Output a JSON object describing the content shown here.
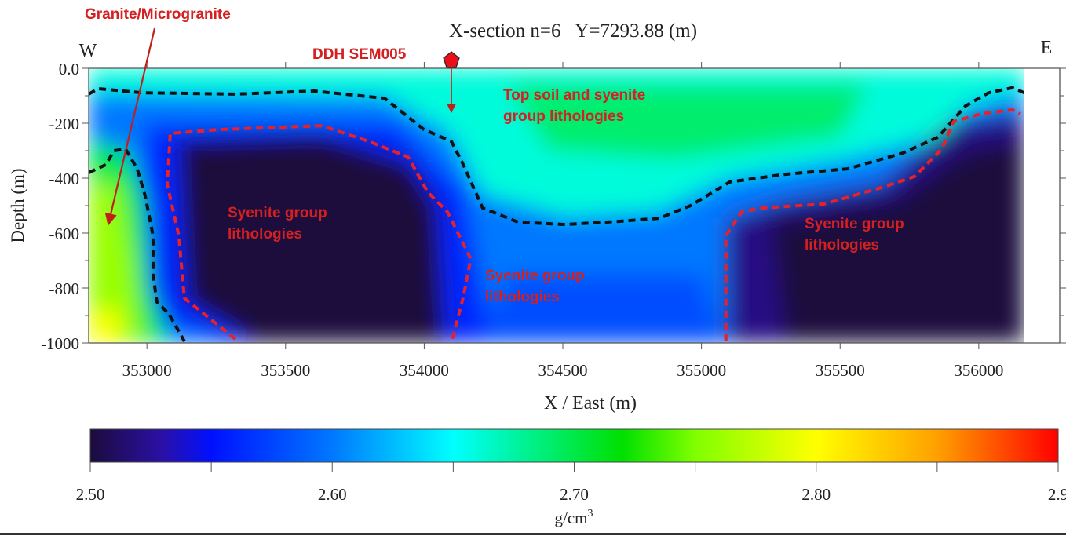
{
  "chart_data": {
    "type": "heatmap",
    "title": "X-section n=6   Y=7293.88 (m)",
    "xlabel": "X / East (m)",
    "ylabel": "Depth (m)",
    "xlim": [
      352790,
      356292
    ],
    "data_xlim": [
      352790,
      356165
    ],
    "ylim": [
      -1000,
      0
    ],
    "x_ticks": [
      353000,
      353500,
      354000,
      354500,
      355000,
      355500,
      356000
    ],
    "x_tick_labels": [
      "353000",
      "353500",
      "354000",
      "354500",
      "355000",
      "355500",
      "356000"
    ],
    "y_ticks": [
      0,
      -200,
      -400,
      -600,
      -800,
      -1000
    ],
    "y_tick_labels": [
      "0.0",
      "-200",
      "-400",
      "-600",
      "-800",
      "-1000"
    ],
    "west_label": "W",
    "east_label": "E",
    "colorbar": {
      "label_base": "g/cm",
      "label_sup": "3",
      "range": [
        2.5,
        2.9
      ],
      "ticks": [
        2.5,
        2.55,
        2.6,
        2.65,
        2.7,
        2.75,
        2.8,
        2.85,
        2.9
      ],
      "tick_labels": [
        "2.50",
        "2.60",
        "2.70",
        "2.80",
        "2.9"
      ],
      "tick_label_values": [
        2.5,
        2.6,
        2.7,
        2.8,
        2.9
      ],
      "stops": [
        {
          "v": 2.5,
          "c": "#1c0c3c"
        },
        {
          "v": 2.53,
          "c": "#2a10a8"
        },
        {
          "v": 2.55,
          "c": "#0010ff"
        },
        {
          "v": 2.6,
          "c": "#0078ff"
        },
        {
          "v": 2.65,
          "c": "#00ffff"
        },
        {
          "v": 2.72,
          "c": "#00e000"
        },
        {
          "v": 2.75,
          "c": "#80ff00"
        },
        {
          "v": 2.8,
          "c": "#ffff00"
        },
        {
          "v": 2.85,
          "c": "#ffa000"
        },
        {
          "v": 2.9,
          "c": "#ff0000"
        }
      ]
    },
    "density_regions": [
      {
        "density": 2.6,
        "points": [
          [
            352790,
            0
          ],
          [
            356165,
            0
          ],
          [
            356165,
            -1000
          ],
          [
            352790,
            -1000
          ]
        ]
      },
      {
        "density": 2.66,
        "points": [
          [
            352790,
            0
          ],
          [
            356165,
            0
          ],
          [
            356165,
            -80
          ],
          [
            355952,
            -140
          ],
          [
            355853,
            -250
          ],
          [
            355527,
            -330
          ],
          [
            355102,
            -400
          ],
          [
            354848,
            -520
          ],
          [
            354508,
            -540
          ],
          [
            354211,
            -460
          ],
          [
            354098,
            -240
          ],
          [
            353857,
            -100
          ],
          [
            352790,
            -90
          ]
        ]
      },
      {
        "density": 2.69,
        "points": [
          [
            354300,
            -60
          ],
          [
            355600,
            -60
          ],
          [
            355500,
            -250
          ],
          [
            354900,
            -330
          ],
          [
            354450,
            -300
          ]
        ]
      },
      {
        "density": 2.56,
        "points": [
          [
            352990,
            -200
          ],
          [
            353900,
            -200
          ],
          [
            354150,
            -450
          ],
          [
            354250,
            -1000
          ],
          [
            353300,
            -1000
          ],
          [
            352990,
            -900
          ]
        ]
      },
      {
        "density": 2.5,
        "points": [
          [
            353110,
            -260
          ],
          [
            353630,
            -240
          ],
          [
            353950,
            -340
          ],
          [
            354050,
            -500
          ],
          [
            354080,
            -1000
          ],
          [
            353380,
            -1000
          ],
          [
            353140,
            -850
          ]
        ]
      },
      {
        "density": 2.58,
        "points": [
          [
            354300,
            -750
          ],
          [
            355000,
            -750
          ],
          [
            355080,
            -1000
          ],
          [
            354200,
            -1000
          ]
        ]
      },
      {
        "density": 2.52,
        "points": [
          [
            355090,
            -550
          ],
          [
            355300,
            -480
          ],
          [
            355650,
            -420
          ],
          [
            355900,
            -200
          ],
          [
            356165,
            -160
          ],
          [
            356165,
            -1000
          ],
          [
            355090,
            -1000
          ]
        ]
      },
      {
        "density": 2.5,
        "points": [
          [
            355250,
            -560
          ],
          [
            355700,
            -480
          ],
          [
            355950,
            -300
          ],
          [
            356165,
            -260
          ],
          [
            356165,
            -1000
          ],
          [
            355300,
            -1000
          ]
        ]
      },
      {
        "density": 2.7,
        "points": [
          [
            352790,
            -260
          ],
          [
            352930,
            -300
          ],
          [
            352990,
            -480
          ],
          [
            353010,
            -800
          ],
          [
            353080,
            -1000
          ],
          [
            352790,
            -1000
          ]
        ]
      },
      {
        "density": 2.76,
        "points": [
          [
            352790,
            -420
          ],
          [
            352900,
            -420
          ],
          [
            352950,
            -700
          ],
          [
            352980,
            -1000
          ],
          [
            352790,
            -1000
          ]
        ]
      },
      {
        "density": 2.8,
        "points": [
          [
            352800,
            -880
          ],
          [
            352900,
            -880
          ],
          [
            352900,
            -1000
          ],
          [
            352800,
            -1000
          ]
        ]
      }
    ],
    "boundaries": [
      {
        "name": "upper-contact",
        "color": "#111111",
        "points": [
          [
            352790,
            -94
          ],
          [
            352824,
            -74
          ],
          [
            352980,
            -89
          ],
          [
            353319,
            -94
          ],
          [
            353602,
            -83
          ],
          [
            353857,
            -109
          ],
          [
            353999,
            -223
          ],
          [
            354098,
            -266
          ],
          [
            354141,
            -351
          ],
          [
            354211,
            -509
          ],
          [
            354338,
            -560
          ],
          [
            354508,
            -569
          ],
          [
            354706,
            -557
          ],
          [
            354848,
            -546
          ],
          [
            354961,
            -500
          ],
          [
            355102,
            -414
          ],
          [
            355301,
            -386
          ],
          [
            355527,
            -366
          ],
          [
            355725,
            -309
          ],
          [
            355853,
            -251
          ],
          [
            355952,
            -137
          ],
          [
            356036,
            -89
          ],
          [
            356121,
            -71
          ],
          [
            356164,
            -89
          ]
        ]
      },
      {
        "name": "granite-contact",
        "color": "#111111",
        "points": [
          [
            352790,
            -380
          ],
          [
            352852,
            -351
          ],
          [
            352881,
            -300
          ],
          [
            352923,
            -294
          ],
          [
            352965,
            -366
          ],
          [
            352994,
            -466
          ],
          [
            353022,
            -609
          ],
          [
            353022,
            -751
          ],
          [
            353036,
            -851
          ],
          [
            353079,
            -894
          ],
          [
            353135,
            -994
          ]
        ]
      },
      {
        "name": "syenite-left",
        "color": "#e8202a",
        "points": [
          [
            353319,
            -986
          ],
          [
            353135,
            -837
          ],
          [
            353115,
            -609
          ],
          [
            353073,
            -423
          ],
          [
            353084,
            -237
          ],
          [
            353263,
            -223
          ],
          [
            353631,
            -209
          ],
          [
            353800,
            -266
          ],
          [
            353942,
            -323
          ],
          [
            354013,
            -451
          ],
          [
            354084,
            -523
          ],
          [
            354168,
            -694
          ],
          [
            354140,
            -837
          ],
          [
            354098,
            -1000
          ]
        ]
      },
      {
        "name": "syenite-right",
        "color": "#e8202a",
        "points": [
          [
            355088,
            -994
          ],
          [
            355088,
            -609
          ],
          [
            355145,
            -523
          ],
          [
            355216,
            -509
          ],
          [
            355442,
            -494
          ],
          [
            355640,
            -437
          ],
          [
            355768,
            -394
          ],
          [
            355867,
            -294
          ],
          [
            355909,
            -194
          ],
          [
            356008,
            -166
          ],
          [
            356121,
            -151
          ],
          [
            356150,
            -166
          ]
        ]
      }
    ],
    "drillhole": {
      "label": "DDH SEM005",
      "x": 354098,
      "depth_end": -160
    },
    "annotations": {
      "granite": "Granite/Microgranite",
      "top_soil_1": "Top soil and syenite",
      "top_soil_2": "group lithologies",
      "syenite_left_1": "Syenite group",
      "syenite_left_2": "lithologies",
      "syenite_mid_1": "Syenite group",
      "syenite_mid_2": "lithologies",
      "syenite_right_1": "Syenite group",
      "syenite_right_2": "lithologies"
    }
  }
}
